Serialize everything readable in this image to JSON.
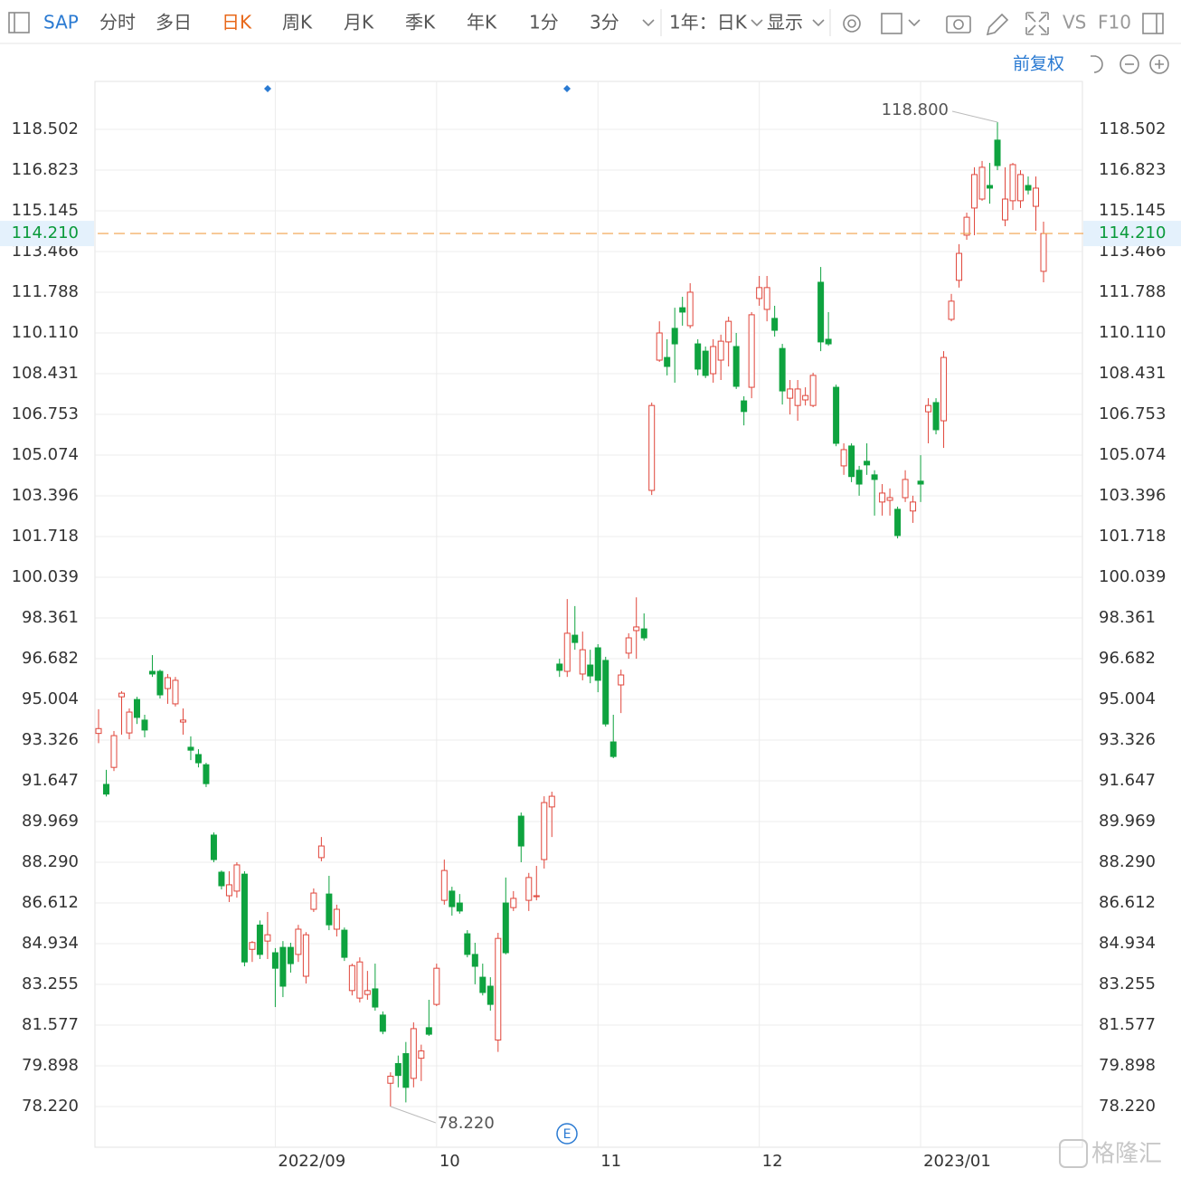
{
  "toolbar": {
    "symbol": "SAP",
    "tabs": [
      "分时",
      "多日",
      "日K",
      "周K",
      "月K",
      "季K",
      "年K",
      "1分",
      "3分"
    ],
    "period": "1年：日K",
    "display": "显示",
    "compare": "VS",
    "f10": "F10",
    "adjust": "前复权"
  },
  "event_label": "E",
  "watermark": "格隆汇",
  "chart_data": {
    "type": "candlestick",
    "categories": [
      null,
      null,
      null,
      null,
      null,
      null,
      null,
      null,
      null,
      null,
      null,
      null,
      null,
      null,
      null,
      null,
      null,
      null,
      null,
      null,
      null,
      null,
      null,
      "2022/09",
      null,
      null,
      null,
      null,
      null,
      null,
      null,
      null,
      null,
      null,
      null,
      null,
      null,
      null,
      null,
      null,
      null,
      null,
      null,
      null,
      "10",
      null,
      null,
      null,
      null,
      null,
      null,
      null,
      null,
      null,
      null,
      null,
      null,
      null,
      null,
      null,
      null,
      null,
      null,
      null,
      null,
      "11",
      null,
      null,
      null,
      null,
      null,
      null,
      null,
      null,
      null,
      null,
      null,
      null,
      null,
      null,
      null,
      null,
      null,
      null,
      null,
      null,
      "12",
      null,
      null,
      null,
      null,
      null,
      null,
      null,
      null,
      null,
      null,
      null,
      null,
      null,
      null,
      null,
      null,
      null,
      null,
      null,
      null,
      "2023/01",
      null,
      null,
      null,
      null,
      null,
      null,
      null,
      null,
      null,
      null,
      null,
      null,
      null,
      null,
      null,
      null
    ],
    "open": [
      93.6,
      91.5,
      92.2,
      95.11,
      93.62,
      95,
      94.15,
      96.16,
      96.16,
      95.45,
      94.82,
      94.07,
      93.03,
      92.73,
      92.31,
      89.41,
      87.88,
      86.91,
      87.1,
      87.8,
      84.7,
      85.7,
      85.04,
      84.56,
      84.78,
      84.78,
      84.49,
      83.59,
      86.35,
      88.48,
      86.98,
      85.53,
      85.49,
      83,
      82.69,
      82.84,
      83.07,
      81.99,
      79.18,
      79.99,
      80.4,
      79.38,
      80.21,
      81.47,
      82.43,
      86.72,
      87.1,
      86.61,
      85.34,
      84.49,
      83.55,
      83.18,
      80.96,
      86.61,
      86.42,
      90.19,
      86.72,
      86.87,
      88.4,
      90.57,
      96.46,
      96.16,
      97.65,
      96.05,
      96.42,
      97.13,
      96.61,
      93.25,
      95.6,
      96.91,
      97.84,
      97.91,
      103.62,
      108.99,
      109.1,
      110.3,
      111.15,
      110.41,
      109.66,
      109.36,
      108.43,
      108.99,
      109.74,
      109.55,
      107.31,
      107.87,
      111.53,
      111.08,
      110.71,
      109.47,
      107.42,
      107.12,
      107.35,
      107.12,
      112.2,
      109.85,
      107.87,
      104.63,
      105.45,
      104.45,
      104.82,
      104.26,
      103.14,
      103.21,
      102.84,
      103.32,
      102.77,
      104,
      106.86,
      107.24,
      106.49,
      110.67,
      112.28,
      114.14,
      115.26,
      115.63,
      116.19,
      118.06,
      114.77,
      115.56,
      115.56,
      116.19,
      115.33,
      112.65
    ],
    "high": [
      94.6,
      92.1,
      93.7,
      95.34,
      94.63,
      95.11,
      94.37,
      96.83,
      96.23,
      96.05,
      95.93,
      94.63,
      93.48,
      92.95,
      92.39,
      89.52,
      87.95,
      87.92,
      88.29,
      87.92,
      85.04,
      85.89,
      86.24,
      84.75,
      85.04,
      84.97,
      85.71,
      85.41,
      87.21,
      89.33,
      87.73,
      86.54,
      85.6,
      84.11,
      84.37,
      83.81,
      84.11,
      82.14,
      79.63,
      80.32,
      80.88,
      81.69,
      80.77,
      82.62,
      84.11,
      88.4,
      87.28,
      86.98,
      85.49,
      84.97,
      84.11,
      83.55,
      85.38,
      87.66,
      87.1,
      90.34,
      87.85,
      88.14,
      91.01,
      91.2,
      96.68,
      99.14,
      98.85,
      97.8,
      97.05,
      97.28,
      96.76,
      94.37,
      96.23,
      97.73,
      99.21,
      98.55,
      107.24,
      110.59,
      109.85,
      111.15,
      111.6,
      112.16,
      109.85,
      109.55,
      109.85,
      110.04,
      110.78,
      110.11,
      107.5,
      110.97,
      112.46,
      112.46,
      111.23,
      109.66,
      108.17,
      108.17,
      107.87,
      108.47,
      112.83,
      110.97,
      107.98,
      105.56,
      105.56,
      104.63,
      105.56,
      104.45,
      103.88,
      103.7,
      102.95,
      104.45,
      103.4,
      105.07,
      107.42,
      107.42,
      109.36,
      111.72,
      113.77,
      115.07,
      116.94,
      117.2,
      117.12,
      118.8,
      116.94,
      117.12,
      116.82,
      116.56,
      116.56,
      114.7
    ],
    "low": [
      93.2,
      91,
      92.05,
      93.55,
      93.36,
      93.99,
      93.44,
      95.93,
      95.04,
      94.82,
      94.71,
      93.55,
      92.5,
      92.2,
      91.39,
      88.29,
      87.17,
      86.65,
      86.83,
      84,
      84.18,
      84.3,
      84.3,
      82.32,
      82.73,
      83.74,
      84.18,
      83.29,
      86.24,
      88.33,
      85.49,
      85.23,
      84.22,
      82.8,
      82.51,
      82.62,
      82.17,
      81.2,
      78.22,
      79.01,
      78.39,
      79.01,
      79.27,
      81.13,
      82.36,
      86.54,
      86.09,
      86.17,
      84.37,
      83.26,
      82.8,
      82.17,
      80.47,
      84.49,
      86.28,
      88.29,
      86.28,
      86.72,
      88.03,
      89.33,
      95.93,
      95.93,
      97.05,
      95.79,
      95.67,
      95.3,
      93.88,
      92.58,
      94.44,
      96.68,
      96.68,
      97.43,
      103.43,
      108.92,
      108.36,
      108.06,
      110.41,
      110.3,
      108.36,
      108.25,
      108.06,
      108.17,
      108.73,
      107.8,
      106.3,
      107.42,
      111.23,
      110.59,
      109.96,
      107.16,
      106.75,
      106.49,
      107.12,
      107.05,
      109.36,
      109.58,
      105.44,
      104.26,
      103.96,
      103.4,
      104.26,
      102.58,
      102.58,
      102.58,
      101.64,
      103.14,
      102.28,
      103.14,
      105.56,
      105.93,
      105.37,
      110.59,
      111.98,
      113.95,
      114.14,
      115.56,
      115.44,
      116.82,
      114.51,
      115.18,
      115.26,
      115.82,
      114.32,
      112.2
    ],
    "close": [
      93.8,
      91.1,
      93.51,
      95.26,
      94.48,
      94.26,
      93.74,
      96.05,
      95.19,
      95.9,
      95.79,
      94.15,
      92.91,
      92.39,
      91.53,
      88.4,
      87.32,
      87.36,
      88.18,
      84.18,
      84.98,
      84.49,
      85.3,
      83.92,
      83.18,
      84.11,
      85.53,
      85.3,
      87.02,
      88.96,
      85.71,
      86.35,
      84.37,
      84.03,
      84.18,
      83,
      82.32,
      81.32,
      79.47,
      79.5,
      79.01,
      81.43,
      80.51,
      81.2,
      83.92,
      87.95,
      86.46,
      86.28,
      84.49,
      84,
      82.92,
      82.43,
      85.15,
      84.56,
      86.8,
      88.96,
      87.66,
      86.91,
      90.75,
      91.01,
      96.2,
      97.73,
      97.35,
      97.05,
      95.97,
      95.79,
      93.99,
      92.65,
      96.01,
      97.54,
      97.99,
      97.54,
      107.12,
      110.11,
      108.73,
      109.66,
      110.97,
      111.79,
      108.62,
      108.36,
      109.55,
      109.77,
      110.59,
      107.91,
      106.87,
      110.86,
      111.98,
      111.98,
      110.22,
      107.72,
      107.8,
      107.8,
      107.53,
      108.36,
      109.74,
      109.66,
      105.56,
      105.3,
      104.19,
      103.88,
      104.67,
      104.07,
      103.51,
      103.32,
      101.76,
      104.07,
      103.14,
      103.88,
      107.12,
      106.12,
      109.1,
      111.42,
      113.39,
      114.88,
      116.64,
      116.94,
      116.08,
      117.01,
      115.63,
      117.05,
      116.64,
      116,
      116.08,
      114.21
    ],
    "up_color": "#e0453a",
    "down_color": "#0ea33f",
    "last_price_color": "#f0a04a",
    "ylim": [
      76.541,
      120.479
    ],
    "yticks": [
      {
        "value": 78.22,
        "label": "78.220"
      },
      79.898,
      81.577,
      83.255,
      84.934,
      86.612,
      {
        "value": 88.29,
        "label": "88.290"
      },
      89.969,
      91.647,
      93.326,
      95.004,
      96.682,
      98.361,
      100.039,
      101.718,
      103.396,
      105.074,
      106.753,
      108.431,
      {
        "value": 110.11,
        "label": "110.110"
      },
      111.788,
      113.466,
      115.145,
      116.823,
      118.502
    ],
    "grid": true,
    "last_price": {
      "value": 114.21,
      "label": "114.210"
    },
    "annotations": [
      {
        "value": 118.8,
        "label": "118.800"
      },
      {
        "value": 78.22,
        "label": "78.220"
      }
    ]
  }
}
